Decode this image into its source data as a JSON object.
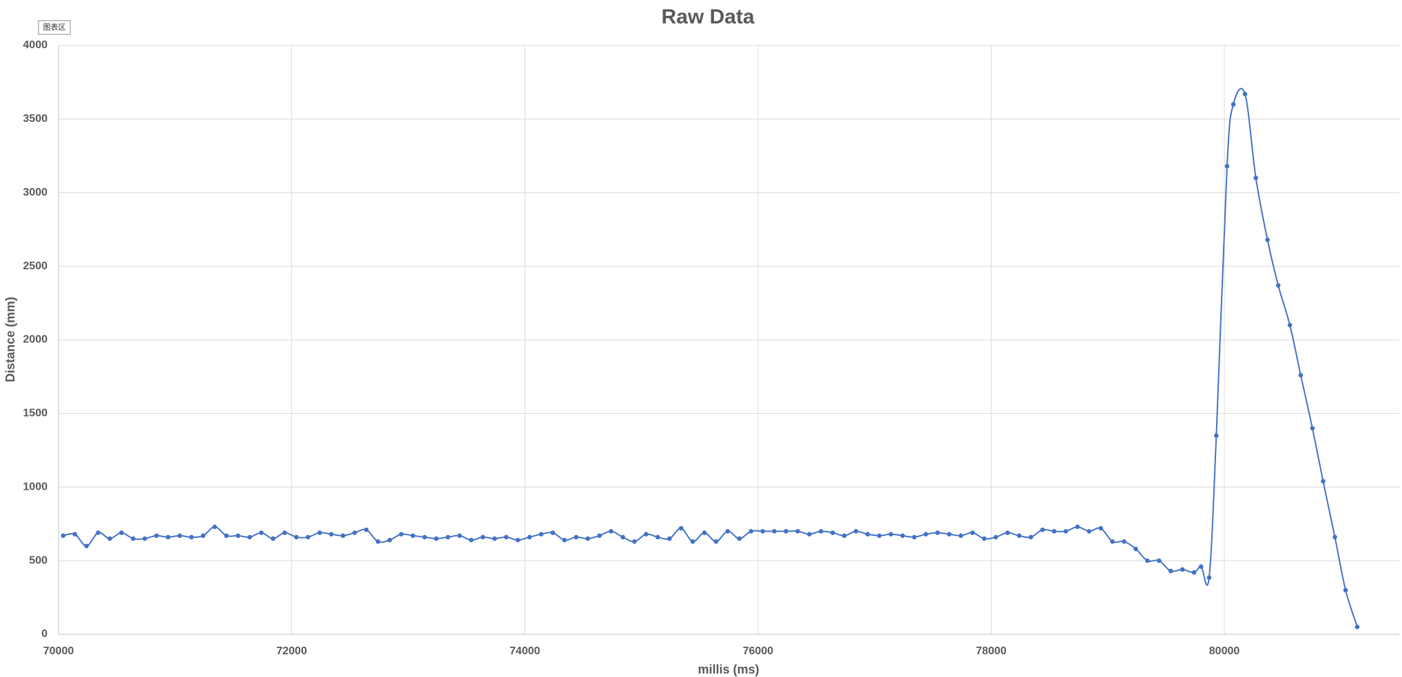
{
  "chart_data": {
    "type": "scatter",
    "title": "Raw Data",
    "annotation": "图表区",
    "x_label": "millis (ms)",
    "y_label": "Distance (mm)",
    "xlim": [
      70000,
      81500
    ],
    "xticks": [
      70000,
      72000,
      74000,
      76000,
      78000,
      80000
    ],
    "ylim": [
      0,
      4000
    ],
    "yticks": [
      0,
      500,
      1000,
      1500,
      2000,
      2500,
      3000,
      3500,
      4000
    ],
    "grid": true,
    "smooth": true,
    "series": [
      {
        "color": "#4472c4",
        "x": [
          70040,
          70140,
          70240,
          70340,
          70440,
          70540,
          70640,
          70740,
          70840,
          70940,
          71040,
          71140,
          71240,
          71340,
          71440,
          71540,
          71640,
          71740,
          71840,
          71940,
          72040,
          72140,
          72240,
          72340,
          72440,
          72540,
          72640,
          72740,
          72840,
          72940,
          73040,
          73140,
          73240,
          73340,
          73440,
          73540,
          73640,
          73740,
          73840,
          73940,
          74040,
          74140,
          74240,
          74340,
          74440,
          74540,
          74640,
          74740,
          74840,
          74940,
          75040,
          75140,
          75240,
          75340,
          75440,
          75540,
          75640,
          75740,
          75840,
          75940,
          76040,
          76140,
          76240,
          76340,
          76440,
          76540,
          76640,
          76740,
          76840,
          76940,
          77040,
          77140,
          77240,
          77340,
          77440,
          77540,
          77640,
          77740,
          77840,
          77940,
          78040,
          78140,
          78240,
          78340,
          78440,
          78540,
          78640,
          78740,
          78840,
          78940,
          79040,
          79140,
          79240,
          79340,
          79440,
          79540,
          79640,
          79740,
          79800,
          79869,
          79931,
          80023,
          80077,
          80177,
          80270,
          80370,
          80462,
          80562,
          80655,
          80755,
          80847,
          80948,
          81040,
          81140
        ],
        "values": [
          670,
          680,
          600,
          690,
          650,
          690,
          650,
          650,
          670,
          660,
          670,
          660,
          670,
          730,
          670,
          670,
          660,
          690,
          650,
          690,
          660,
          660,
          690,
          680,
          670,
          690,
          710,
          630,
          640,
          680,
          670,
          660,
          650,
          660,
          670,
          640,
          660,
          650,
          660,
          640,
          660,
          680,
          690,
          640,
          660,
          650,
          670,
          700,
          660,
          630,
          680,
          660,
          650,
          720,
          630,
          690,
          630,
          700,
          650,
          700,
          700,
          700,
          700,
          700,
          680,
          700,
          690,
          670,
          700,
          680,
          670,
          680,
          670,
          660,
          680,
          690,
          680,
          670,
          690,
          650,
          660,
          690,
          670,
          660,
          710,
          700,
          700,
          730,
          700,
          720,
          630,
          630,
          580,
          500,
          500,
          430,
          440,
          420,
          460,
          385,
          1350,
          3180,
          3600,
          3670,
          3100,
          2680,
          2370,
          2100,
          1760,
          1400,
          1040,
          660,
          300,
          50
        ]
      }
    ]
  }
}
